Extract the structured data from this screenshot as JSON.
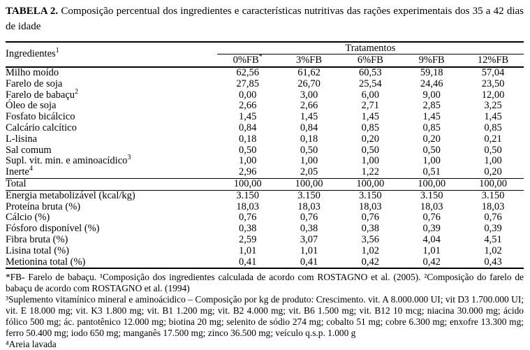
{
  "page": {
    "title_label": "TABELA 2.",
    "title_text": "Composição percentual dos ingredientes e características nutritivas das rações experimentais dos 35 a 42 dias de idade"
  },
  "table": {
    "ingredients_header": "Ingredientes",
    "ingredients_header_sup": "1",
    "treatments_header": "Tratamentos",
    "columns": [
      {
        "label": "0%FB",
        "sup": "*"
      },
      {
        "label": "3%FB",
        "sup": ""
      },
      {
        "label": "6%FB",
        "sup": ""
      },
      {
        "label": "9%FB",
        "sup": ""
      },
      {
        "label": "12%FB",
        "sup": ""
      }
    ],
    "sections": [
      {
        "id": "ingredients",
        "rows": [
          {
            "label": "Milho moído",
            "sup": "",
            "values": [
              "62,56",
              "61,62",
              "60,53",
              "59,18",
              "57,04"
            ]
          },
          {
            "label": "Farelo de soja",
            "sup": "",
            "values": [
              "27,85",
              "26,70",
              "25,54",
              "24,46",
              "23,50"
            ]
          },
          {
            "label": "Farelo de babaçu",
            "sup": "2",
            "values": [
              "0,00",
              "3,00",
              "6,00",
              "9,00",
              "12,00"
            ]
          },
          {
            "label": "Óleo de soja",
            "sup": "",
            "values": [
              "2,66",
              "2,66",
              "2,71",
              "2,85",
              "3,25"
            ]
          },
          {
            "label": "Fosfato bicálcico",
            "sup": "",
            "values": [
              "1,45",
              "1,45",
              "1,45",
              "1,45",
              "1,45"
            ]
          },
          {
            "label": "Calcário calcítico",
            "sup": "",
            "values": [
              "0,84",
              "0,84",
              "0,85",
              "0,85",
              "0,85"
            ]
          },
          {
            "label": "L-lisina",
            "sup": "",
            "values": [
              "0,18",
              "0,18",
              "0,20",
              "0,20",
              "0,21"
            ]
          },
          {
            "label": "Sal comum",
            "sup": "",
            "values": [
              "0,50",
              "0,50",
              "0,50",
              "0,50",
              "0,50"
            ]
          },
          {
            "label": "Supl. vit. min. e aminoacídico",
            "sup": "3",
            "values": [
              "1,00",
              "1,00",
              "1,00",
              "1,00",
              "1,00"
            ]
          },
          {
            "label": "Inerte",
            "sup": "4",
            "values": [
              "2,96",
              "2,05",
              "1,22",
              "0,51",
              "0,20"
            ]
          }
        ]
      },
      {
        "id": "total",
        "rows": [
          {
            "label": "Total",
            "sup": "",
            "values": [
              "100,00",
              "100,00",
              "100,00",
              "100,00",
              "100,00"
            ]
          }
        ]
      },
      {
        "id": "nutrition",
        "rows": [
          {
            "label": "Energia metabolizável (kcal/kg)",
            "sup": "",
            "values": [
              "3.150",
              "3.150",
              "3.150",
              "3.150",
              "3.150"
            ]
          },
          {
            "label": "Proteína bruta (%)",
            "sup": "",
            "values": [
              "18,03",
              "18,03",
              "18,03",
              "18,03",
              "18,03"
            ]
          },
          {
            "label": "Cálcio (%)",
            "sup": "",
            "values": [
              "0,76",
              "0,76",
              "0,76",
              "0,76",
              "0,76"
            ]
          },
          {
            "label": "Fósforo disponível (%)",
            "sup": "",
            "values": [
              "0,38",
              "0,38",
              "0,38",
              "0,39",
              "0,39"
            ]
          },
          {
            "label": "Fibra bruta (%)",
            "sup": "",
            "values": [
              "2,59",
              "3,07",
              "3,56",
              "4,04",
              "4,51"
            ]
          },
          {
            "label": "Lisina total (%)",
            "sup": "",
            "values": [
              "1,01",
              "1,01",
              "1,02",
              "1,01",
              "1,02"
            ]
          },
          {
            "label": "Metionina total (%)",
            "sup": "",
            "values": [
              "0,41",
              "0,41",
              "0,42",
              "0,42",
              "0,43"
            ]
          }
        ]
      }
    ]
  },
  "footnotes": [
    "*FB- Farelo de babaçu. ¹Composição dos ingredientes calculada de acordo com ROSTAGNO et al. (2005). ²Composição do farelo de babaçu de acordo com ROSTAGNO et al. (1994)",
    "³Suplemento vitamínico mineral e aminoácidico – Composição por kg de produto: Crescimento. vit. A 8.000.000 UI; vit D3 1.700.000 UI; vit. E 18.000 mg; vit. K3 1.800 mg; vit. B1 1.200 mg; vit. B2 4.000 mg; vit. B6 1.500 mg; vit. B12 10 mcg; niacina 30.000 mg; ácido fólico 500 mg; ác. pantotênico 12.000 mg; biotina 20 mg; selenito de sódio 274 mg; cobalto 51 mg; cobre 6.300 mg; enxofre 13.300 mg; ferro 50.400 mg; iodo 650 mg; manganês 17.500 mg; zinco 36.500 mg; veículo q.s.p. 1.000 g",
    "⁴Areia lavada"
  ]
}
